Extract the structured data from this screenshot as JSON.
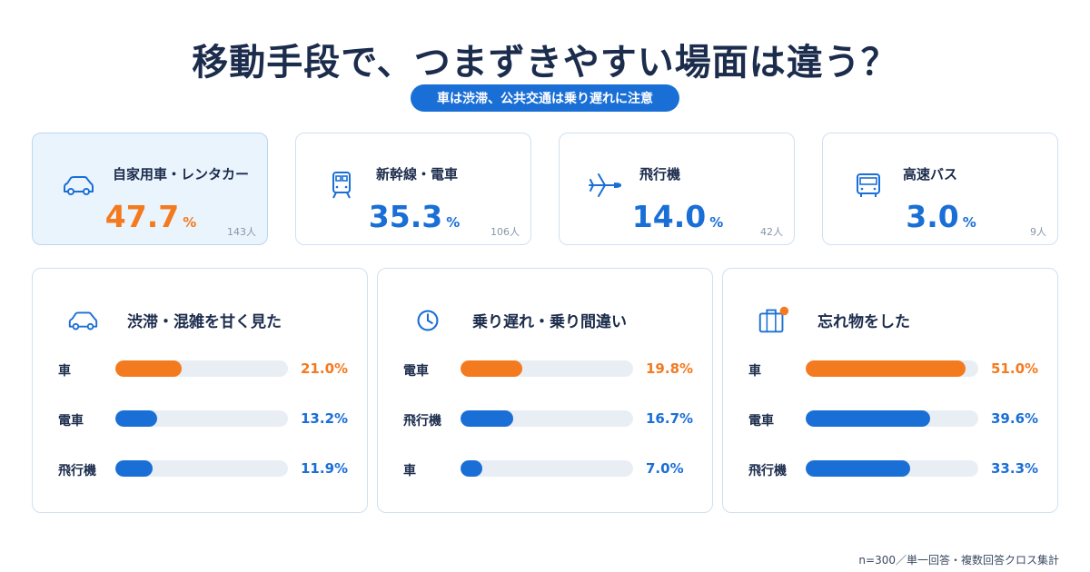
{
  "title": "移動手段で、つまずきやすい場面は違う？",
  "subtitle": "車は渋滞、公共交通は乗り遅れに注意",
  "chart_data": [
    {
      "type": "bar",
      "categories": [
        "自家用車・レンタカー",
        "新幹線・電車",
        "飛行機",
        "高速バス"
      ],
      "values": [
        47.7,
        35.3,
        14.0,
        3.0
      ],
      "value_labels": [
        "47.7",
        "35.3",
        "14.0",
        "3.0"
      ],
      "unit": "%",
      "counts": [
        "143人",
        "106人",
        "42人",
        "9人"
      ],
      "icons": [
        "car-icon",
        "train-icon",
        "airplane-icon",
        "bus-icon"
      ],
      "highlight_index": 0
    },
    {
      "type": "bar",
      "title": "渋滞・混雑を甘く見た",
      "icon": "car-icon",
      "categories": [
        "車",
        "電車",
        "飛行機"
      ],
      "values": [
        21.0,
        13.2,
        11.9
      ],
      "value_labels": [
        "21.0%",
        "13.2%",
        "11.9%"
      ],
      "xlim": [
        0,
        55
      ]
    },
    {
      "type": "bar",
      "title": "乗り遅れ・乗り間違い",
      "icon": "clock-icon",
      "categories": [
        "電車",
        "飛行機",
        "車"
      ],
      "values": [
        19.8,
        16.7,
        7.0
      ],
      "value_labels": [
        "19.8%",
        "16.7%",
        "7.0%"
      ],
      "xlim": [
        0,
        55
      ]
    },
    {
      "type": "bar",
      "title": "忘れ物をした",
      "icon": "suitcase-icon",
      "categories": [
        "車",
        "電車",
        "飛行機"
      ],
      "values": [
        51.0,
        39.6,
        33.3
      ],
      "value_labels": [
        "51.0%",
        "39.6%",
        "33.3%"
      ],
      "xlim": [
        0,
        55
      ]
    }
  ],
  "colors": {
    "primary": "#1a6fd6",
    "accent": "#f47a1f",
    "track": "#e9eef5",
    "border": "#cfe0f2",
    "highlight_bg": "#eaf4fd"
  },
  "footnote": "n=300／単一回答・複数回答クロス集計"
}
